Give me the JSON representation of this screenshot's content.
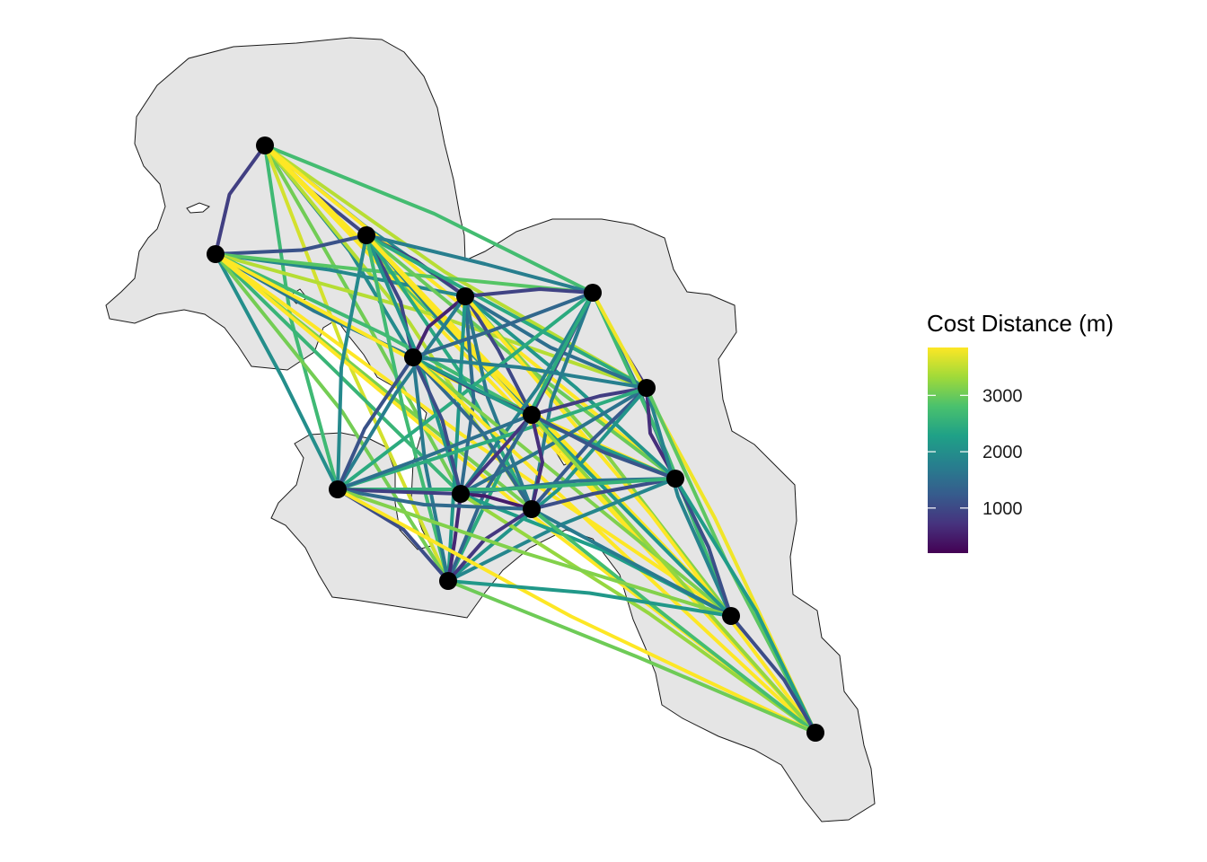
{
  "chart_data": {
    "type": "map",
    "legend": {
      "title": "Cost Distance (m)",
      "placement": "right",
      "min": 200,
      "max": 3850,
      "ticks": [
        {
          "value": 1000,
          "label": "1000"
        },
        {
          "value": 2000,
          "label": "2000"
        },
        {
          "value": 3000,
          "label": "3000"
        }
      ]
    },
    "colors": {
      "land_fill": "#e5e5e5",
      "land_stroke": "#1a1a1a",
      "site": "#000000",
      "scale": [
        "#440154",
        "#46337e",
        "#365c8d",
        "#277f8e",
        "#1fa187",
        "#4ac16d",
        "#a0da39",
        "#fde725"
      ]
    },
    "colormap": "viridis",
    "site_count": 15,
    "path_count": 105
  }
}
